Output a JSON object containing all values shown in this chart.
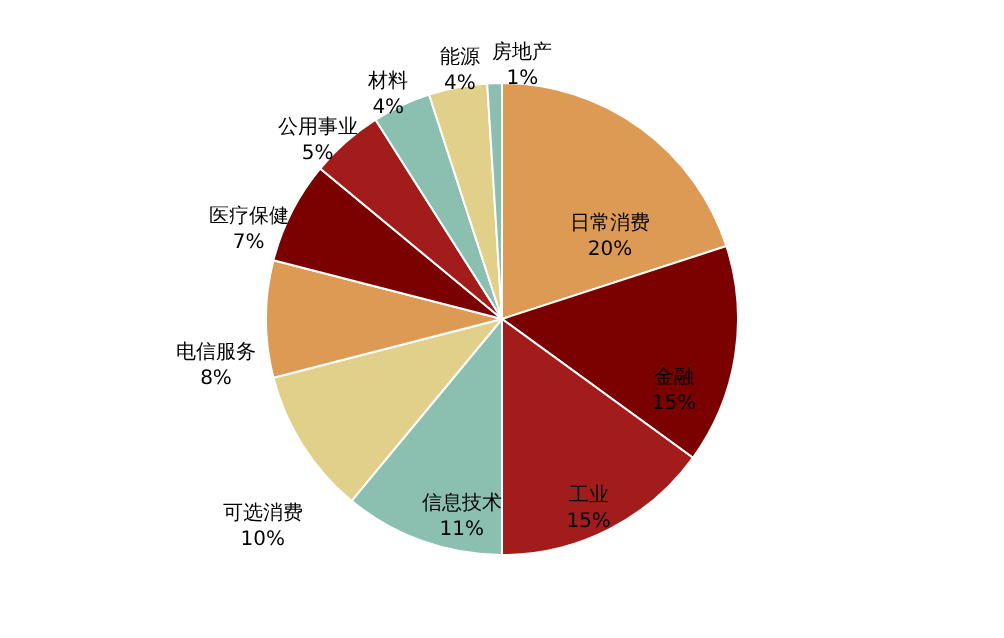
{
  "chart_data": {
    "type": "pie",
    "categories": [
      "日常消费",
      "金融",
      "工业",
      "信息技术",
      "可选消费",
      "电信服务",
      "医疗保健",
      "公用事业",
      "材料",
      "能源",
      "房地产"
    ],
    "values": [
      20,
      15,
      15,
      11,
      10,
      8,
      7,
      5,
      4,
      4,
      1
    ],
    "colors": [
      "#dd9a55",
      "#7b0000",
      "#a31c1c",
      "#8bbfb0",
      "#e0d08a",
      "#dd9a55",
      "#7b0000",
      "#a31c1c",
      "#8bbfb0",
      "#e0d08a",
      "#8bbfb0"
    ],
    "value_labels": [
      "20%",
      "15%",
      "15%",
      "11%",
      "10%",
      "8%",
      "7%",
      "5%",
      "4%",
      "4%",
      "1%"
    ]
  }
}
